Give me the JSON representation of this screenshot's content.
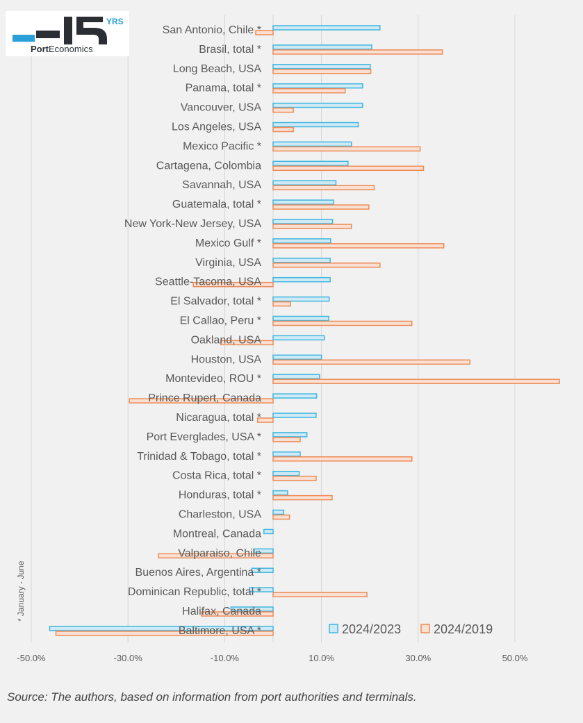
{
  "logo": {
    "text": "PortEconomics",
    "badge": "YRS",
    "number": "15"
  },
  "note": "* January - June",
  "source": "Source: The authors, based on information from port authorities and terminals.",
  "colors": {
    "series_2024_2023": "#3fb6e0",
    "series_2024_2019": "#ee8a55",
    "grid": "#d6d6d6",
    "text": "#595959"
  },
  "chart_data": {
    "type": "bar",
    "orientation": "horizontal",
    "title": "",
    "xlim": [
      -50,
      60
    ],
    "xticks": [
      "-50.0%",
      "-30.0%",
      "-10.0%",
      "10.0%",
      "30.0%",
      "50.0%"
    ],
    "grid": true,
    "legend_position": "bottom-right",
    "categories": [
      "San Antonio, Chile *",
      "Brasil, total *",
      "Long Beach, USA",
      "Panama, total *",
      "Vancouver, USA",
      "Los Angeles, USA",
      "Mexico Pacific *",
      "Cartagena, Colombia",
      "Savannah, USA",
      "Guatemala, total *",
      "New York-New Jersey, USA",
      "Mexico Gulf *",
      "Virginia, USA",
      "Seattle-Tacoma, USA",
      "El Salvador, total *",
      "El Callao, Peru *",
      "Oakland, USA",
      "Houston, USA",
      "Montevideo, ROU *",
      "Prince Rupert, Canada",
      "Nicaragua, total *",
      "Port Everglades, USA *",
      "Trinidad & Tobago, total *",
      "Costa Rica, total *",
      "Honduras, total *",
      "Charleston, USA",
      "Montreal, Canada",
      "Valparaiso, Chile",
      "Buenos Aires, Argentina *",
      "Dominican Republic, total *",
      "Halifax, Canada",
      "Baltimore, USA *"
    ],
    "series": [
      {
        "name": "2024/2023",
        "values": [
          22.1,
          20.4,
          20.1,
          18.5,
          18.5,
          17.6,
          16.2,
          15.5,
          13.0,
          12.5,
          12.3,
          11.9,
          11.8,
          11.8,
          11.6,
          11.5,
          10.6,
          10.0,
          9.6,
          9.0,
          8.9,
          7.0,
          5.6,
          5.4,
          3.0,
          2.2,
          -1.9,
          -3.9,
          -4.4,
          -4.9,
          -8.7,
          -46.2
        ]
      },
      {
        "name": "2024/2019",
        "values": [
          -3.6,
          35.0,
          20.2,
          14.9,
          4.2,
          4.2,
          30.4,
          31.1,
          20.9,
          19.8,
          16.2,
          35.3,
          22.1,
          -16.5,
          3.6,
          28.7,
          -10.8,
          40.7,
          59.2,
          -29.7,
          -3.2,
          5.6,
          28.7,
          8.9,
          12.2,
          3.4,
          null,
          -23.7,
          null,
          19.4,
          -14.8,
          -44.9
        ]
      }
    ]
  }
}
